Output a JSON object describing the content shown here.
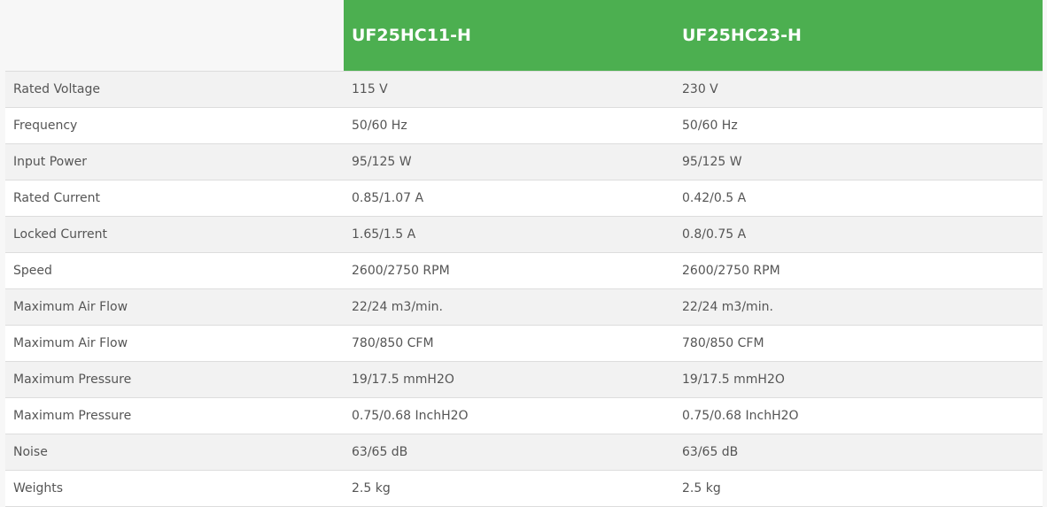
{
  "header": {
    "models": [
      "UF25HC11-H",
      "UF25HC23-H"
    ]
  },
  "colors": {
    "header_bg": "#4caf50"
  },
  "rows": [
    [
      "Rated Voltage",
      "115 V",
      "230 V"
    ],
    [
      "Frequency",
      "50/60 Hz",
      "50/60 Hz"
    ],
    [
      "Input Power",
      "95/125 W",
      "95/125 W"
    ],
    [
      "Rated Current",
      "0.85/1.07 A",
      "0.42/0.5 A"
    ],
    [
      "Locked Current",
      "1.65/1.5 A",
      "0.8/0.75 A"
    ],
    [
      "Speed",
      "2600/2750 RPM",
      "2600/2750 RPM"
    ],
    [
      "Maximum Air Flow",
      "22/24 m3/min.",
      "22/24 m3/min."
    ],
    [
      "Maximum Air Flow",
      "780/850 CFM",
      "780/850 CFM"
    ],
    [
      "Maximum Pressure",
      "19/17.5 mmH2O",
      "19/17.5 mmH2O"
    ],
    [
      "Maximum Pressure",
      "0.75/0.68 InchH2O",
      "0.75/0.68 InchH2O"
    ],
    [
      "Noise",
      "63/65 dB",
      "63/65 dB"
    ],
    [
      "Weights",
      "2.5 kg",
      "2.5 kg"
    ]
  ]
}
